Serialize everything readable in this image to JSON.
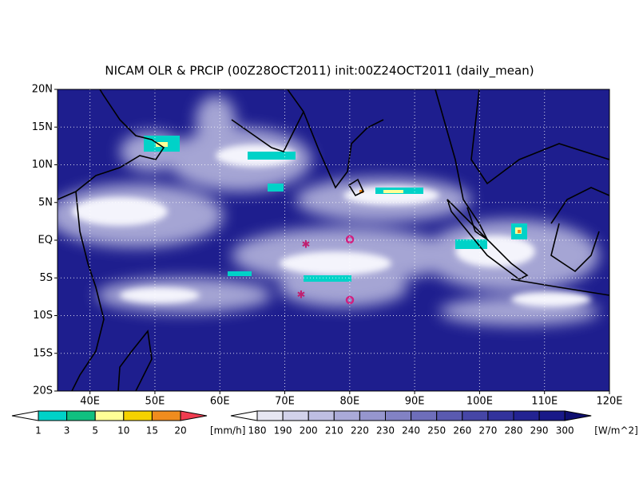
{
  "title": "NICAM OLR & PRCIP (00Z28OCT2011) init:00Z24OCT2011 (daily_mean)",
  "lat_labels": [
    "20N",
    "15N",
    "10N",
    "5N",
    "EQ",
    "5S",
    "10S",
    "15S",
    "20S"
  ],
  "lon_labels": [
    "40E",
    "50E",
    "60E",
    "70E",
    "80E",
    "90E",
    "100E",
    "110E",
    "120E"
  ],
  "precip_colorbar": {
    "labels": [
      1,
      3,
      5,
      10,
      15,
      20
    ],
    "unit": "[mm/h]",
    "colors": [
      "#ffffff",
      "#00d2c8",
      "#10c080",
      "#ffff96",
      "#f5d200",
      "#f08c1e",
      "#f03c50"
    ]
  },
  "olr_colorbar": {
    "labels": [
      180,
      190,
      200,
      210,
      220,
      230,
      240,
      250,
      260,
      270,
      280,
      290,
      300
    ],
    "unit": "[W/m^2]",
    "colors": [
      "#ffffff",
      "#e6e6f2",
      "#d2d2ea",
      "#bebee2",
      "#aaaad8",
      "#9696ce",
      "#8282c4",
      "#6e6eba",
      "#5a5ab0",
      "#4646a6",
      "#32329c",
      "#232392",
      "#191988",
      "#14147e",
      "#0f0f70"
    ]
  }
}
